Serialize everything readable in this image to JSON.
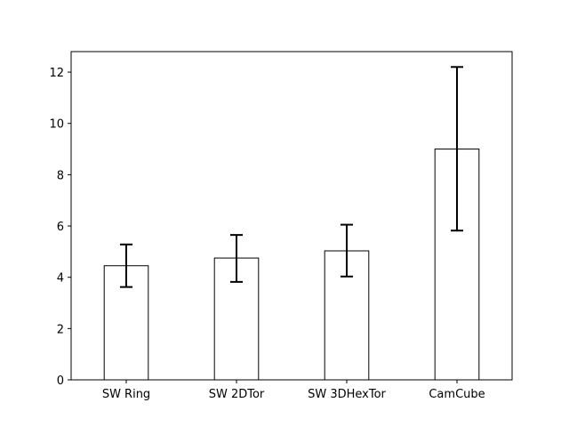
{
  "chart_data": {
    "type": "bar",
    "categories": [
      "SW Ring",
      "SW 2DTor",
      "SW 3DHexTor",
      "CamCube"
    ],
    "values": [
      4.45,
      4.75,
      5.03,
      9.0
    ],
    "error_low": [
      3.62,
      3.82,
      4.03,
      5.82
    ],
    "error_high": [
      5.28,
      5.65,
      6.05,
      12.2
    ],
    "title": "",
    "xlabel": "",
    "ylabel": "",
    "ylim": [
      0,
      12.8
    ],
    "yticks": [
      "0",
      "2",
      "4",
      "6",
      "8",
      "10",
      "12"
    ],
    "grid": false,
    "legend": "none",
    "colors": {
      "bar_fill": "#ffffff",
      "bar_edge": "#000000",
      "error_bar": "#000000",
      "axes": "#000000"
    }
  }
}
